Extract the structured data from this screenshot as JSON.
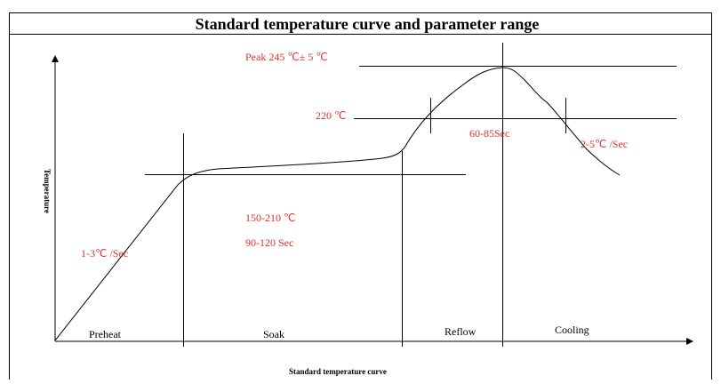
{
  "title": "Standard temperature curve and parameter range",
  "y_axis_label": "Temperature",
  "x_axis_label": "Standard temperature curve",
  "annotations": {
    "peak": "Peak 245 ℃± 5 ℃",
    "liquidus": "220 ℃",
    "time_above_liquidus": "60-85Sec",
    "cooling_rate": "2-5℃ /Sec",
    "soak_temperature": "150-210 ℃",
    "soak_time": "90-120 Sec",
    "ramp_rate": "1-3℃ /Sec"
  },
  "phases": [
    "Preheat",
    "Soak",
    "Reflow",
    "Cooling"
  ]
}
